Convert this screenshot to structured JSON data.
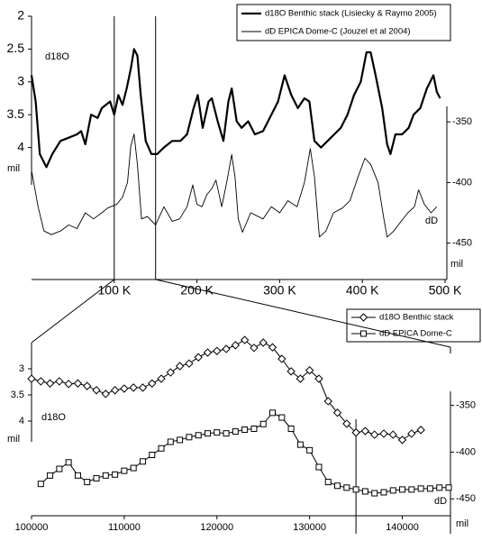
{
  "chart_data": [
    {
      "type": "line",
      "y_label": "d18O",
      "y_unit": "mil",
      "y2_label": "dD",
      "y2_unit": "mil",
      "xlim": [
        0,
        500000
      ],
      "xticks": [
        {
          "value": 100000,
          "label": "100 K"
        },
        {
          "value": 200000,
          "label": "200 K"
        },
        {
          "value": 300000,
          "label": "300 K"
        },
        {
          "value": 400000,
          "label": "400 K"
        },
        {
          "value": 500000,
          "label": "500 K"
        }
      ],
      "ylim": [
        2,
        4.5
      ],
      "y_reversed": true,
      "yticks": [
        2,
        2.5,
        3,
        3.5,
        4
      ],
      "y2lim": [
        -480,
        -335
      ],
      "y2ticks": [
        -350,
        -400,
        -450
      ],
      "highlight_x": [
        100000,
        150000
      ],
      "legend": "top-right",
      "series": [
        {
          "name": "d18O Benthic stack (Lisiecky & Raymo 2005)",
          "color": "#000000",
          "width": 2.2,
          "axis": "y",
          "x": [
            0,
            5000,
            10000,
            18000,
            25000,
            35000,
            45000,
            55000,
            60000,
            65000,
            72000,
            80000,
            85000,
            95000,
            100000,
            105000,
            110000,
            115000,
            120000,
            124000,
            128000,
            132000,
            138000,
            145000,
            152000,
            160000,
            170000,
            180000,
            188000,
            196000,
            201000,
            207000,
            214000,
            218000,
            225000,
            232000,
            238000,
            242000,
            248000,
            254000,
            262000,
            270000,
            280000,
            290000,
            298000,
            306000,
            314000,
            322000,
            330000,
            336000,
            342000,
            350000,
            358000,
            366000,
            374000,
            382000,
            390000,
            398000,
            405000,
            410000,
            416000,
            424000,
            430000,
            434000,
            440000,
            448000,
            456000,
            462000,
            470000,
            478000,
            486000,
            490000,
            494000
          ],
          "values": [
            2.9,
            3.3,
            4.1,
            4.3,
            4.1,
            3.9,
            3.85,
            3.8,
            3.75,
            3.95,
            3.5,
            3.55,
            3.4,
            3.3,
            3.5,
            3.2,
            3.35,
            3.1,
            2.8,
            2.5,
            2.6,
            3.2,
            3.9,
            4.1,
            4.1,
            4.0,
            3.9,
            3.9,
            3.8,
            3.4,
            3.2,
            3.7,
            3.3,
            3.25,
            3.6,
            3.9,
            3.3,
            3.1,
            3.6,
            3.7,
            3.6,
            3.8,
            3.75,
            3.5,
            3.3,
            2.9,
            3.2,
            3.4,
            3.25,
            3.3,
            3.9,
            4.0,
            3.9,
            3.8,
            3.7,
            3.5,
            3.2,
            3.0,
            2.55,
            2.55,
            2.9,
            3.4,
            3.95,
            4.1,
            3.8,
            3.8,
            3.7,
            3.5,
            3.4,
            3.1,
            2.9,
            3.15,
            3.25
          ]
        },
        {
          "name": "dD EPICA Dome-C (Jouzel et al 2004)",
          "color": "#000000",
          "width": 0.9,
          "axis": "y2",
          "x": [
            0,
            8000,
            15000,
            24000,
            35000,
            45000,
            55000,
            65000,
            75000,
            85000,
            92000,
            103000,
            110000,
            116000,
            120000,
            124000,
            128000,
            133000,
            140000,
            150000,
            160000,
            170000,
            179000,
            188000,
            195000,
            200000,
            206000,
            212000,
            218000,
            223000,
            230000,
            236000,
            242000,
            246000,
            250000,
            255000,
            265000,
            280000,
            290000,
            300000,
            310000,
            321000,
            330000,
            337000,
            342000,
            348000,
            356000,
            365000,
            376000,
            385000,
            395000,
            403000,
            410000,
            419000,
            426000,
            430000,
            438000,
            447000,
            455000,
            463000,
            468000,
            475000,
            483000,
            490000
          ],
          "values": [
            -390,
            -420,
            -440,
            -443,
            -440,
            -435,
            -438,
            -425,
            -430,
            -425,
            -421,
            -418,
            -412,
            -400,
            -370,
            -360,
            -385,
            -430,
            -428,
            -435,
            -420,
            -432,
            -430,
            -420,
            -402,
            -418,
            -420,
            -410,
            -405,
            -398,
            -420,
            -400,
            -377,
            -395,
            -430,
            -441,
            -425,
            -430,
            -420,
            -425,
            -415,
            -420,
            -400,
            -372,
            -395,
            -445,
            -440,
            -425,
            -421,
            -415,
            -395,
            -380,
            -385,
            -400,
            -430,
            -445,
            -440,
            -432,
            -425,
            -420,
            -406,
            -418,
            -425,
            -420
          ]
        }
      ]
    },
    {
      "type": "line",
      "y_label": "d18O",
      "y_unit": "mil",
      "y2_label": "dD",
      "y2_unit": "mil",
      "xlim": [
        100000,
        145000
      ],
      "xticks": [
        100000,
        110000,
        120000,
        130000,
        140000
      ],
      "ylim": [
        2.5,
        4.5
      ],
      "y_reversed": true,
      "yticks": [
        3,
        3.5,
        4
      ],
      "y2lim": [
        -470,
        -335
      ],
      "y2ticks": [
        -350,
        -400,
        -450
      ],
      "highlight_x": [
        135000
      ],
      "legend": "top-right",
      "series": [
        {
          "name": "d18O Benthic stack",
          "color": "#000000",
          "width": 1,
          "marker": "diamond",
          "axis": "y",
          "x": [
            100000,
            101000,
            102000,
            103000,
            104000,
            105000,
            106000,
            107000,
            108000,
            109000,
            110000,
            111000,
            112000,
            113000,
            114000,
            115000,
            116000,
            117000,
            118000,
            119000,
            120000,
            121000,
            122000,
            123000,
            124000,
            125000,
            126000,
            127000,
            128000,
            129000,
            130000,
            131000,
            132000,
            133000,
            134000,
            135000,
            136000,
            137000,
            138000,
            139000,
            140000,
            141000,
            142000
          ],
          "values": [
            3.19,
            3.24,
            3.28,
            3.24,
            3.29,
            3.28,
            3.33,
            3.41,
            3.48,
            3.41,
            3.38,
            3.36,
            3.36,
            3.28,
            3.19,
            3.07,
            2.95,
            2.9,
            2.78,
            2.69,
            2.66,
            2.62,
            2.55,
            2.45,
            2.6,
            2.5,
            2.59,
            2.81,
            3.05,
            3.19,
            3.03,
            3.19,
            3.62,
            3.84,
            4.05,
            4.22,
            4.19,
            4.26,
            4.24,
            4.26,
            4.36,
            4.24,
            4.17
          ]
        },
        {
          "name": "dD EPICA Dome-C",
          "color": "#000000",
          "width": 1,
          "marker": "square",
          "axis": "y2",
          "x": [
            101000,
            102000,
            103000,
            104000,
            105000,
            106000,
            107000,
            108000,
            109000,
            110000,
            111000,
            112000,
            113000,
            114000,
            115000,
            116000,
            117000,
            118000,
            119000,
            120000,
            121000,
            122000,
            123000,
            124000,
            125000,
            126000,
            127000,
            128000,
            129000,
            130000,
            131000,
            132000,
            133000,
            134000,
            135000,
            136000,
            137000,
            138000,
            139000,
            140000,
            141000,
            142000,
            143000,
            144000,
            145000
          ],
          "values": [
            -434,
            -425,
            -418,
            -411,
            -425,
            -432,
            -428,
            -425,
            -424,
            -420,
            -417,
            -410,
            -403,
            -396,
            -389,
            -387,
            -384,
            -382,
            -380,
            -379,
            -380,
            -378,
            -376,
            -375,
            -370,
            -358,
            -363,
            -375,
            -392,
            -398,
            -416,
            -432,
            -436,
            -438,
            -440,
            -442,
            -444,
            -443,
            -441,
            -440,
            -440,
            -439,
            -439,
            -438,
            -438
          ]
        }
      ]
    }
  ]
}
